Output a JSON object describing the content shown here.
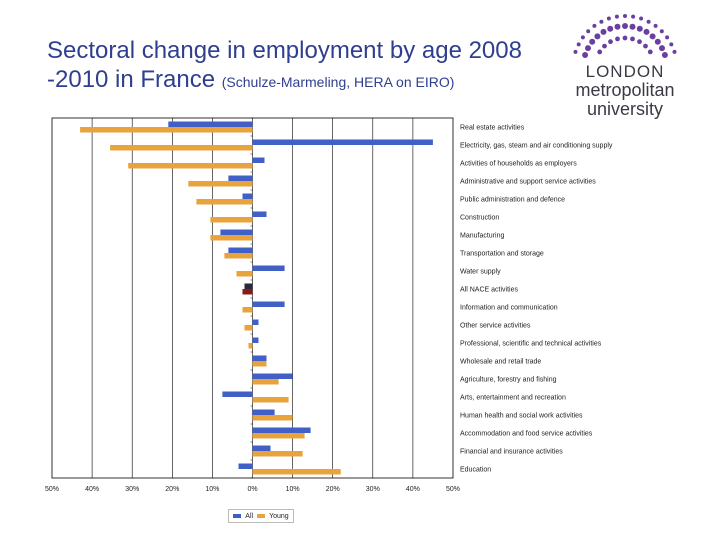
{
  "slide": {
    "title_main": "Sectoral change in employment by age 2008 -2010 in France",
    "title_citation": "(Schulze-Marmeling, HERA on EIRO)"
  },
  "logo": {
    "line1": "LONDON",
    "line2": "metropolitan",
    "line3": "university",
    "dot_color": "#6b3fa0"
  },
  "chart_data": {
    "type": "bar",
    "orientation": "horizontal",
    "title": "",
    "xlabel": "",
    "ylabel": "",
    "xlim": [
      -50,
      50
    ],
    "x_ticks": [
      "50%",
      "40%",
      "30%",
      "20%",
      "10%",
      "0%",
      "10%",
      "20%",
      "30%",
      "40%",
      "50%"
    ],
    "grid": true,
    "legend_position": "bottom",
    "categories": [
      "Real estate activities",
      "Electricity, gas, steam and air conditioning supply",
      "Activities of households as employers",
      "Administrative and support service activities",
      "Public administration and defence",
      "Construction",
      "Manufacturing",
      "Transportation and storage",
      "Water supply",
      "All NACE activities",
      "Information and communication",
      "Other service activities",
      "Professional, scientific and technical activities",
      "Wholesale and retail trade",
      "Agriculture, forestry and fishing",
      "Arts, entertainment and recreation",
      "Human health and social work activities",
      "Accommodation and food service activities",
      "Financial and insurance activities",
      "Education"
    ],
    "series": [
      {
        "name": "All",
        "color": "#4060c8",
        "values": [
          -21,
          45,
          3,
          -6,
          -2.5,
          3.5,
          -8,
          -6,
          8,
          -2,
          8,
          1.5,
          1.5,
          3.5,
          10,
          -7.5,
          5.5,
          14.5,
          4.5,
          -3.5
        ]
      },
      {
        "name": "Young",
        "color": "#e8a33d",
        "values": [
          -43,
          -35.5,
          -31,
          -16,
          -14,
          -10.5,
          -10.5,
          -7,
          -4,
          -2.5,
          -2.5,
          -2,
          -1,
          3.5,
          6.5,
          9,
          10,
          13,
          12.5,
          22
        ]
      }
    ],
    "highlight_category": "All NACE activities",
    "highlight_colors": {
      "All": "#2a2a3a",
      "Young": "#8b1a1a"
    }
  }
}
